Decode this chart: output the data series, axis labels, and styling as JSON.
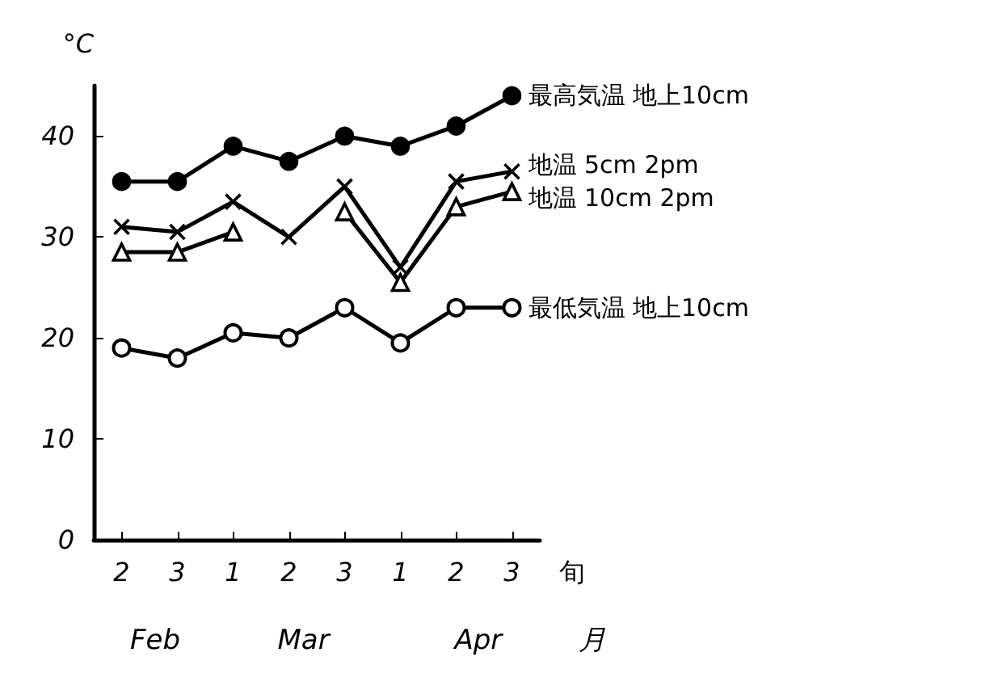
{
  "chart_data": {
    "type": "line",
    "ylabel": "°C",
    "xlabel": "旬",
    "categories": [
      "2",
      "3",
      "1",
      "2",
      "3",
      "1",
      "2",
      "3"
    ],
    "series": [
      {
        "name": "最高気温 地上10cm",
        "color": "#000000",
        "marker": "circle",
        "values": [
          35.5,
          35.5,
          39,
          37.5,
          40,
          39,
          41,
          44
        ]
      },
      {
        "name": "地温 5cm 2pm",
        "color": "#000000",
        "marker": "cross",
        "values": [
          31,
          30.5,
          33.5,
          30,
          35,
          27,
          35.5,
          36.5
        ]
      },
      {
        "name": "地温 10cm 2pm",
        "color": "#000000",
        "marker": "triangle",
        "values": [
          28.5,
          28.5,
          30.5,
          null,
          32.5,
          25.5,
          33,
          34.5
        ]
      },
      {
        "name": "最低気温 地上10cm",
        "color": "#000000",
        "marker": "circle",
        "values": [
          19,
          18,
          20.5,
          20,
          23,
          19.5,
          23,
          23
        ]
      }
    ],
    "annotations": [
      "Feb",
      "Mar",
      "Apr",
      "月"
    ],
    "ylim": [
      0,
      45
    ],
    "yticks": [
      0,
      10,
      20,
      30,
      40
    ],
    "grid": false,
    "legend": false
  }
}
